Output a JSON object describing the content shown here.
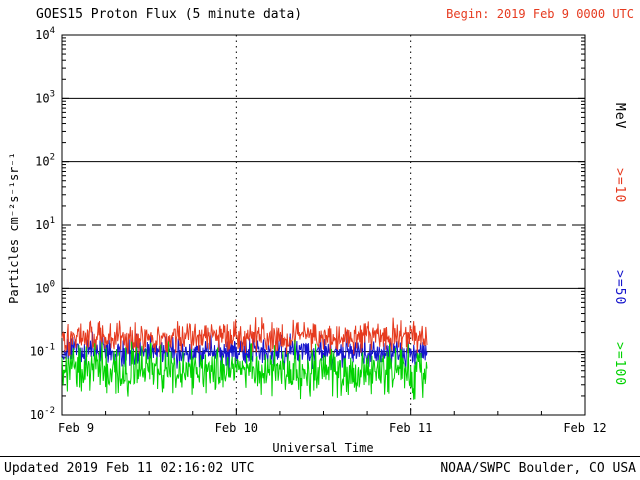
{
  "header": {
    "title": "GOES15 Proton Flux (5 minute data)",
    "begin_label": "Begin: 2019 Feb 9 0000 UTC"
  },
  "footer": {
    "updated": "Updated 2019 Feb 11 02:16:02 UTC",
    "source": "NOAA/SWPC Boulder, CO USA"
  },
  "right_axis": {
    "unit": "MeV",
    "labels": [
      {
        "text": ">=10",
        "color": "#e63a1f"
      },
      {
        "text": ">=50",
        "color": "#1414cc"
      },
      {
        "text": ">=100",
        "color": "#00d200"
      }
    ]
  },
  "colors": {
    "background": "#ffffff",
    "axis": "#000000",
    "begin_text": "#e63a1f"
  },
  "chart_data": {
    "type": "line",
    "title": "GOES15 Proton Flux (5 minute data)",
    "xlabel": "Universal Time",
    "ylabel": "Particles cm⁻²s⁻¹sr⁻¹",
    "x_tick_labels": [
      "Feb 9",
      "Feb 10",
      "Feb 11",
      "Feb 12"
    ],
    "x_range_days": 3,
    "ylim_log10": [
      -2,
      4
    ],
    "y_exponent_ticks": [
      4,
      3,
      2,
      1,
      0,
      -1,
      -2
    ],
    "gridlines": {
      "solid": [
        1000,
        100,
        1,
        0.1
      ],
      "dashed": [
        10
      ],
      "vertical_dotted_days": [
        1,
        2
      ]
    },
    "sampling_minutes": 5,
    "data_end_day_fraction": 2.094,
    "legend_position": "right",
    "series": [
      {
        "name": ">=10 MeV",
        "color": "#e63a1f",
        "mean_flux": 0.17,
        "log_sigma": 0.13,
        "seed": 101
      },
      {
        "name": ">=50 MeV",
        "color": "#1414cc",
        "mean_flux": 0.1,
        "log_sigma": 0.12,
        "seed": 202
      },
      {
        "name": ">=100 MeV",
        "color": "#00d200",
        "mean_flux": 0.05,
        "log_sigma": 0.18,
        "seed": 303
      }
    ]
  }
}
